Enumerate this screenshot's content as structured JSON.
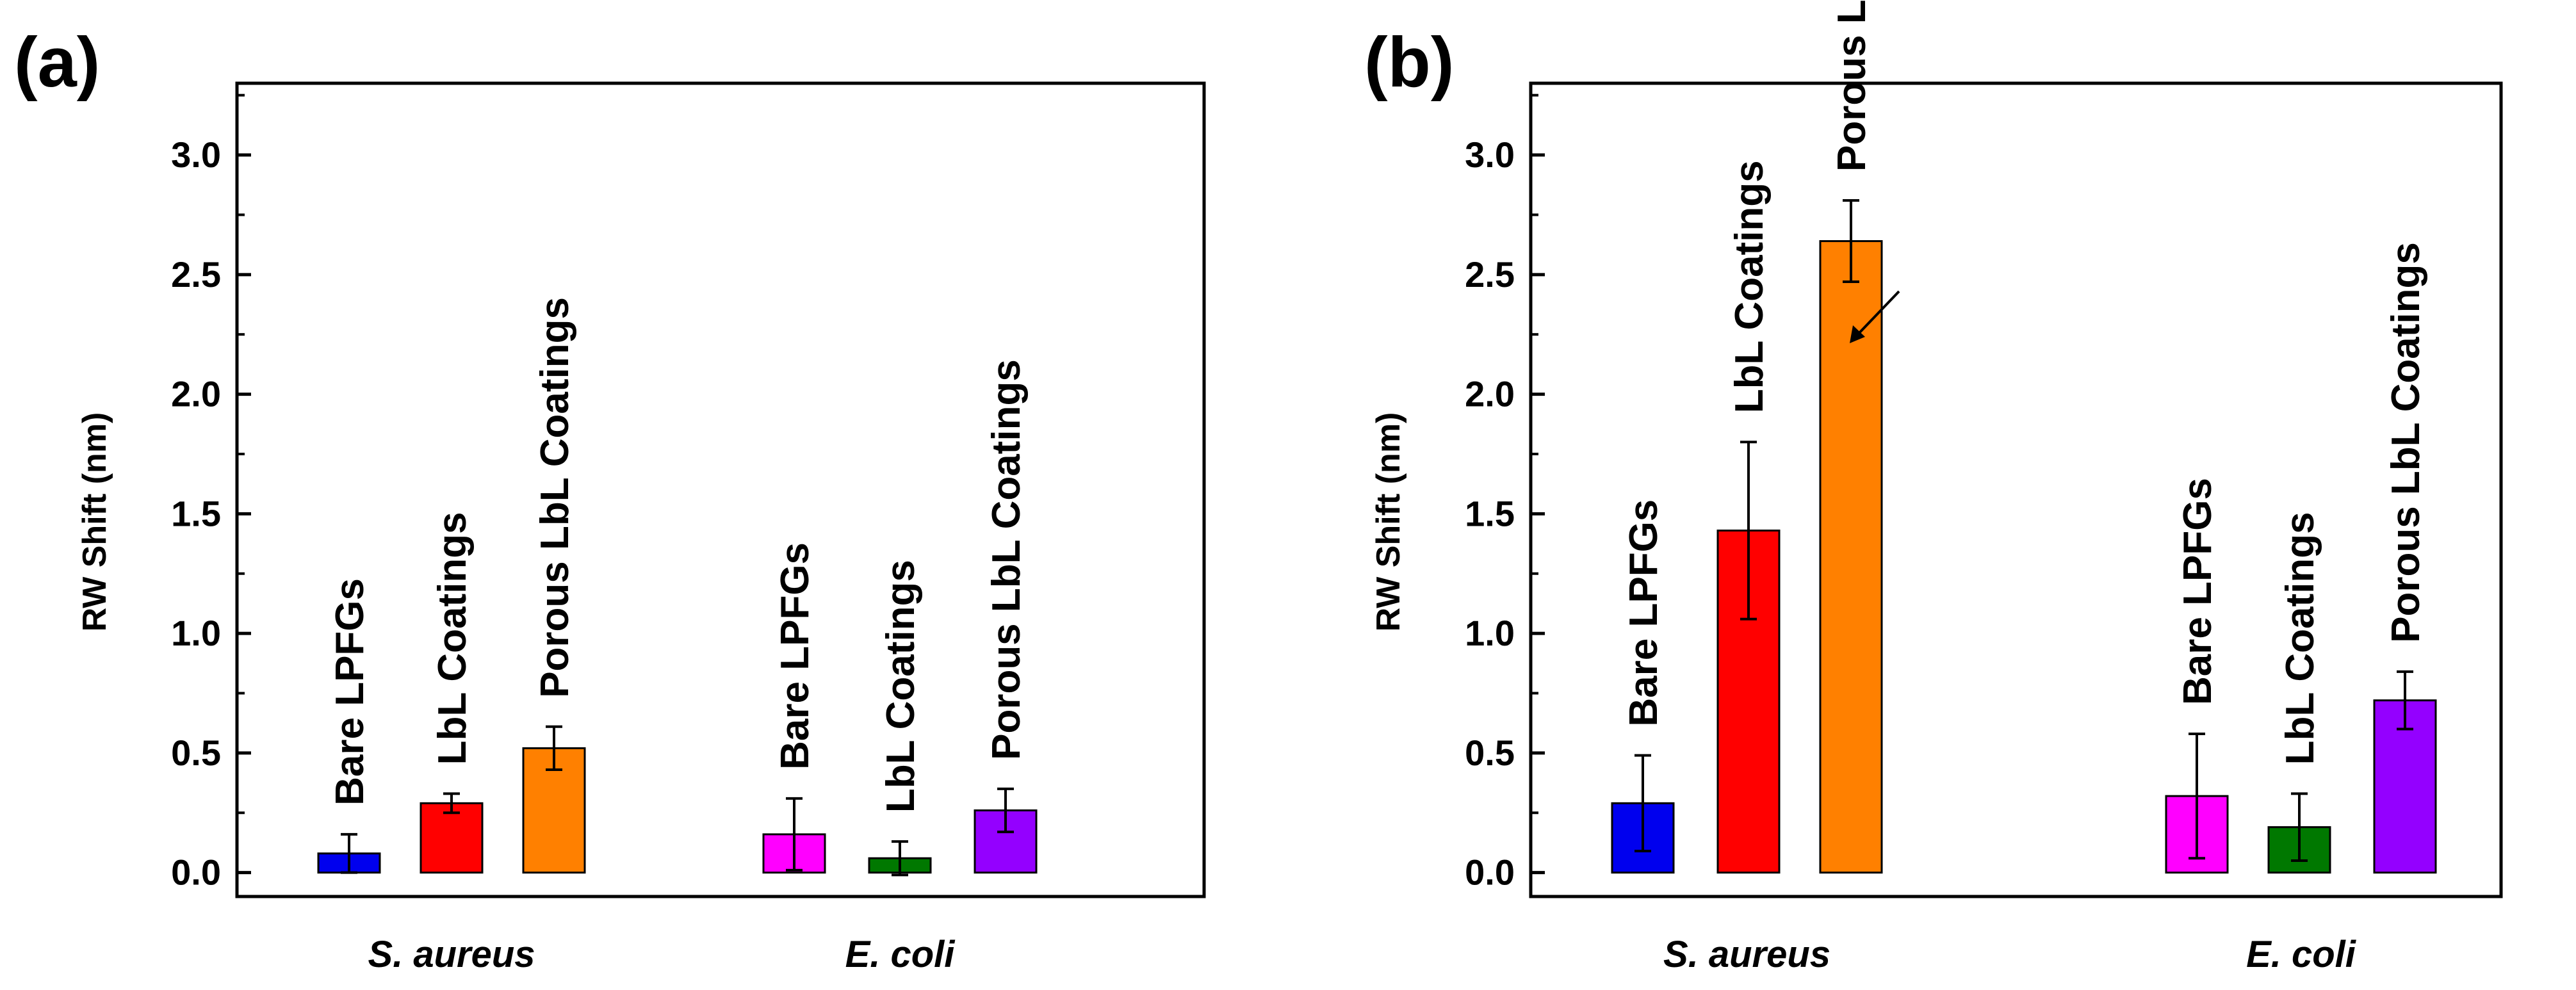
{
  "chart_data": [
    {
      "type": "bar",
      "panel": "(a)",
      "ylabel": "RW Shift (nm)",
      "ylim": [
        -0.1,
        3.3
      ],
      "yticks": [
        0.0,
        0.5,
        1.0,
        1.5,
        2.0,
        2.5,
        3.0
      ],
      "ytick_labels": [
        "0.0",
        "0.5",
        "1.0",
        "1.5",
        "2.0",
        "2.5",
        "3.0"
      ],
      "grid": false,
      "groups": [
        {
          "name": "S. aureus",
          "bars": [
            {
              "label": "Bare LPFGs",
              "value": 0.08,
              "error": 0.08,
              "color": "#0000ee"
            },
            {
              "label": "LbL Coatings",
              "value": 0.29,
              "error": 0.04,
              "color": "#ff0000"
            },
            {
              "label": "Porous LbL Coatings",
              "value": 0.52,
              "error": 0.09,
              "color": "#ff8000"
            }
          ]
        },
        {
          "name": "E. coli",
          "bars": [
            {
              "label": "Bare LPFGs",
              "value": 0.16,
              "error": 0.15,
              "color": "#ff00ff"
            },
            {
              "label": "LbL Coatings",
              "value": 0.06,
              "error": 0.07,
              "color": "#007800"
            },
            {
              "label": "Porous LbL Coatings",
              "value": 0.26,
              "error": 0.09,
              "color": "#9400ff"
            }
          ]
        }
      ]
    },
    {
      "type": "bar",
      "panel": "(b)",
      "ylabel": "RW Shift (nm)",
      "ylim": [
        -0.1,
        3.3
      ],
      "yticks": [
        0.0,
        0.5,
        1.0,
        1.5,
        2.0,
        2.5,
        3.0
      ],
      "ytick_labels": [
        "0.0",
        "0.5",
        "1.0",
        "1.5",
        "2.0",
        "2.5",
        "3.0"
      ],
      "grid": false,
      "groups": [
        {
          "name": "S. aureus",
          "bars": [
            {
              "label": "Bare LPFGs",
              "value": 0.29,
              "error": 0.2,
              "color": "#0000ee"
            },
            {
              "label": "LbL Coatings",
              "value": 1.43,
              "error": 0.37,
              "color": "#ff0000"
            },
            {
              "label": "Porous LbL Coatings",
              "value": 2.64,
              "error": 0.17,
              "color": "#ff8000"
            }
          ]
        },
        {
          "name": "E. coli",
          "bars": [
            {
              "label": "Bare LPFGs",
              "value": 0.32,
              "error": 0.26,
              "color": "#ff00ff"
            },
            {
              "label": "LbL Coatings",
              "value": 0.19,
              "error": 0.14,
              "color": "#007800"
            },
            {
              "label": "Porous LbL Coatings",
              "value": 0.72,
              "error": 0.12,
              "color": "#9400ff"
            }
          ]
        }
      ]
    }
  ]
}
